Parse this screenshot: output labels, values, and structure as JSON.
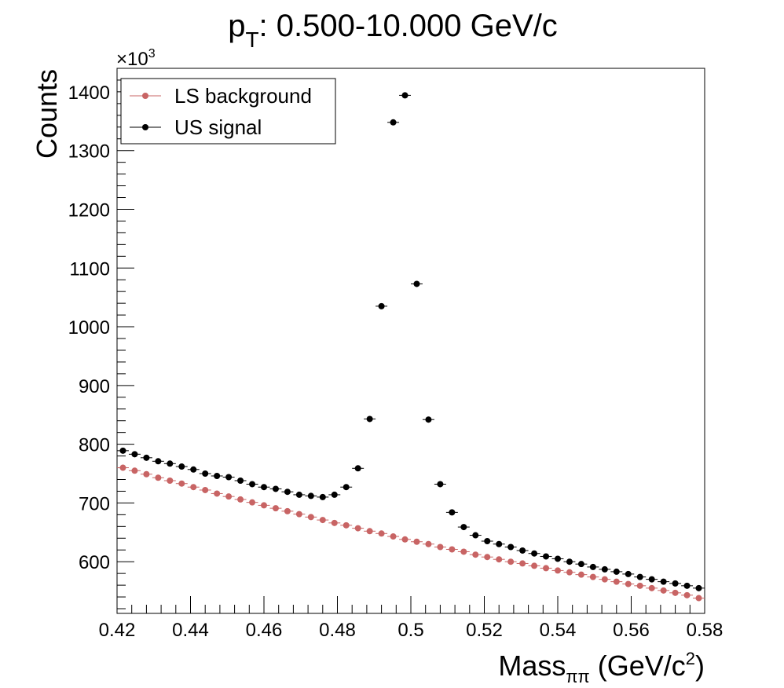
{
  "chart_data": {
    "type": "scatter",
    "title": {
      "main": "p",
      "sub": "T",
      "rest": ": 0.500-10.000 GeV/c"
    },
    "xlabel": {
      "main": "Mass",
      "sub": "ππ",
      "rest": " (GeV/c",
      "sup": "2",
      "close": ")"
    },
    "ylabel": "Counts",
    "y_multiplier": {
      "base": "×10",
      "exp": "3"
    },
    "xlim": [
      0.42,
      0.58
    ],
    "ylim": [
      512,
      1440
    ],
    "x_ticks": [
      0.42,
      0.44,
      0.46,
      0.48,
      0.5,
      0.52,
      0.54,
      0.56,
      0.58
    ],
    "x_tick_labels": [
      "0.42",
      "0.44",
      "0.46",
      "0.48",
      "0.5",
      "0.52",
      "0.54",
      "0.56",
      "0.58"
    ],
    "y_ticks": [
      600,
      700,
      800,
      900,
      1000,
      1100,
      1200,
      1300,
      1400
    ],
    "y_tick_labels": [
      "600",
      "700",
      "800",
      "900",
      "1000",
      "1100",
      "1200",
      "1300",
      "1400"
    ],
    "grid": false,
    "legend_position": "top-left",
    "bin_width": 0.0032,
    "x": [
      0.4216,
      0.4248,
      0.428,
      0.4312,
      0.4344,
      0.4376,
      0.4408,
      0.444,
      0.4472,
      0.4504,
      0.4536,
      0.4568,
      0.46,
      0.4632,
      0.4664,
      0.4696,
      0.4728,
      0.476,
      0.4792,
      0.4824,
      0.4856,
      0.4888,
      0.492,
      0.4952,
      0.4984,
      0.5016,
      0.5048,
      0.508,
      0.5112,
      0.5144,
      0.5176,
      0.5208,
      0.524,
      0.5272,
      0.5304,
      0.5336,
      0.5368,
      0.54,
      0.5432,
      0.5464,
      0.5496,
      0.5528,
      0.556,
      0.5592,
      0.5624,
      0.5656,
      0.5688,
      0.572,
      0.5752,
      0.5784
    ],
    "series": [
      {
        "name": "LS background",
        "color": "#c86464",
        "values": [
          760,
          755,
          749,
          743,
          738,
          733,
          727,
          722,
          716,
          711,
          706,
          701,
          696,
          691,
          686,
          681,
          676,
          671,
          666,
          662,
          657,
          652,
          648,
          643,
          638,
          634,
          630,
          625,
          621,
          617,
          612,
          608,
          604,
          600,
          597,
          593,
          589,
          585,
          582,
          578,
          574,
          570,
          566,
          562,
          559,
          555,
          551,
          547,
          543,
          538
        ]
      },
      {
        "name": "US signal",
        "color": "#000000",
        "values": [
          789,
          783,
          777,
          771,
          767,
          762,
          757,
          750,
          746,
          744,
          738,
          732,
          727,
          724,
          719,
          714,
          712,
          710,
          714,
          727,
          759,
          843,
          1035,
          1348,
          1394,
          1073,
          842,
          732,
          684,
          659,
          645,
          635,
          630,
          625,
          619,
          614,
          609,
          605,
          600,
          596,
          591,
          587,
          583,
          579,
          574,
          570,
          566,
          563,
          559,
          555
        ]
      }
    ]
  }
}
